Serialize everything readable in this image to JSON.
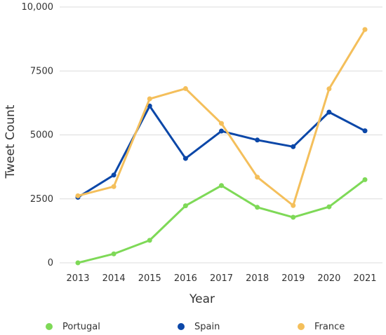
{
  "chart_data": {
    "type": "line",
    "title": "",
    "xlabel": "Year",
    "ylabel": "Tweet Count",
    "categories": [
      "2013",
      "2014",
      "2015",
      "2016",
      "2017",
      "2018",
      "2019",
      "2020",
      "2021"
    ],
    "ylim": [
      0,
      10000
    ],
    "yticks": [
      {
        "value": 0,
        "label": "0"
      },
      {
        "value": 2500,
        "label": "2500"
      },
      {
        "value": 5000,
        "label": "5000"
      },
      {
        "value": 7500,
        "label": "7500"
      },
      {
        "value": 10000,
        "label": "10,000"
      }
    ],
    "grid": true,
    "legend_position": "bottom",
    "series": [
      {
        "name": "Portugal",
        "color": "#7ed957",
        "values": [
          0,
          350,
          880,
          2230,
          3020,
          2170,
          1780,
          2190,
          3250
        ]
      },
      {
        "name": "Spain",
        "color": "#0b47a8",
        "values": [
          2560,
          3430,
          6130,
          4080,
          5150,
          4800,
          4540,
          5890,
          5160
        ]
      },
      {
        "name": "France",
        "color": "#f4bf5b",
        "values": [
          2620,
          2980,
          6410,
          6810,
          5450,
          3350,
          2240,
          6800,
          9120
        ]
      }
    ]
  }
}
